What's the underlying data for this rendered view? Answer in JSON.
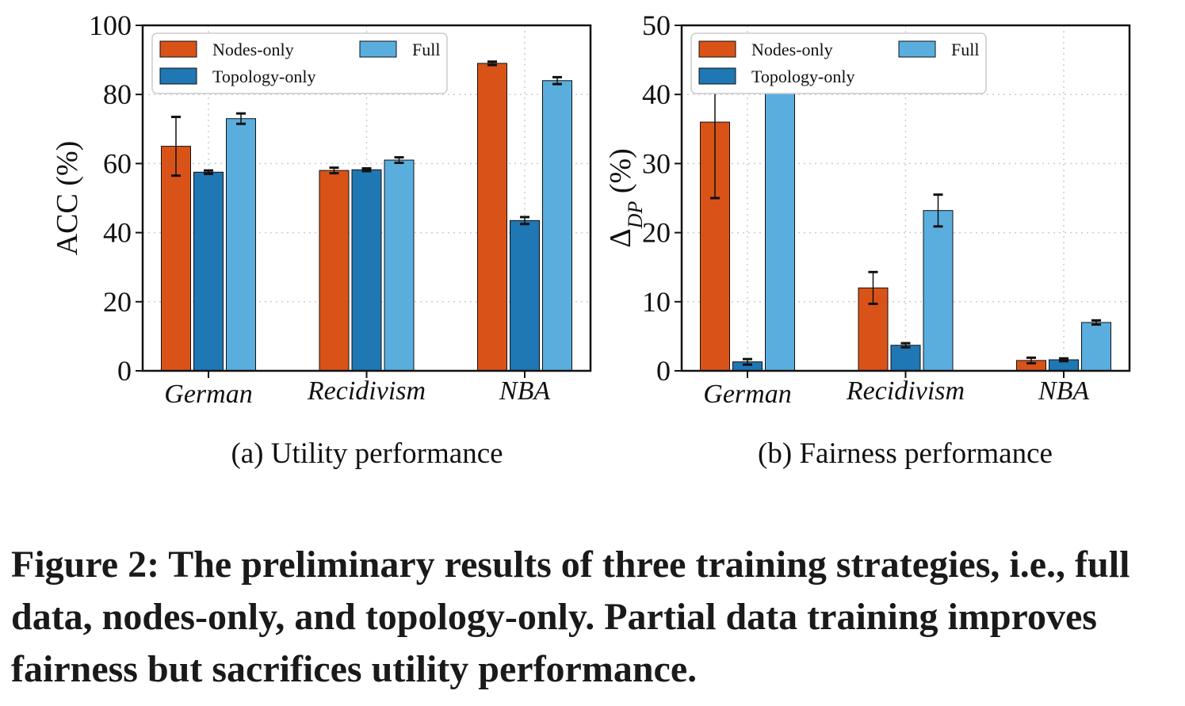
{
  "caption": "Figure 2: The preliminary results of three training strategies, i.e., full data, nodes-only, and topology-only. Partial data training improves fairness but sacrifices utility performance.",
  "colors": {
    "nodes_only": "#d95319",
    "topology_only": "#1f77b4",
    "full": "#5aaede",
    "grid": "#cccccc",
    "error_bar": "#111111"
  },
  "chart_data": [
    {
      "type": "bar",
      "subcaption": "(a) Utility performance",
      "ylabel": "ACC (%)",
      "xlabel": "",
      "ylim": [
        0,
        100
      ],
      "yticks": [
        0,
        20,
        40,
        60,
        80,
        100
      ],
      "grid": true,
      "legend_position": "top",
      "categories": [
        "German",
        "Recidivism",
        "NBA"
      ],
      "series": [
        {
          "name": "Nodes-only",
          "values": [
            65.0,
            58.0,
            89.0
          ],
          "errors": [
            8.5,
            0.8,
            0.5
          ]
        },
        {
          "name": "Topology-only",
          "values": [
            57.5,
            58.2,
            43.5
          ],
          "errors": [
            0.5,
            0.4,
            1.0
          ]
        },
        {
          "name": "Full",
          "values": [
            73.0,
            61.0,
            84.0
          ],
          "errors": [
            1.5,
            0.8,
            1.0
          ]
        }
      ]
    },
    {
      "type": "bar",
      "subcaption": "(b) Fairness performance",
      "ylabel": "Δ",
      "ylabel_subscript": "DP",
      "ylabel_suffix": " (%)",
      "xlabel": "",
      "ylim": [
        0,
        50
      ],
      "yticks": [
        0,
        10,
        20,
        30,
        40,
        50
      ],
      "grid": true,
      "legend_position": "top",
      "categories": [
        "German",
        "Recidivism",
        "NBA"
      ],
      "series": [
        {
          "name": "Nodes-only",
          "values": [
            36.0,
            12.0,
            1.5
          ],
          "errors": [
            11.0,
            2.3,
            0.4
          ]
        },
        {
          "name": "Topology-only",
          "values": [
            1.3,
            3.7,
            1.6
          ],
          "errors": [
            0.4,
            0.3,
            0.2
          ]
        },
        {
          "name": "Full",
          "values": [
            45.0,
            23.2,
            7.0
          ],
          "errors": [
            2.8,
            2.3,
            0.3
          ]
        }
      ]
    }
  ]
}
